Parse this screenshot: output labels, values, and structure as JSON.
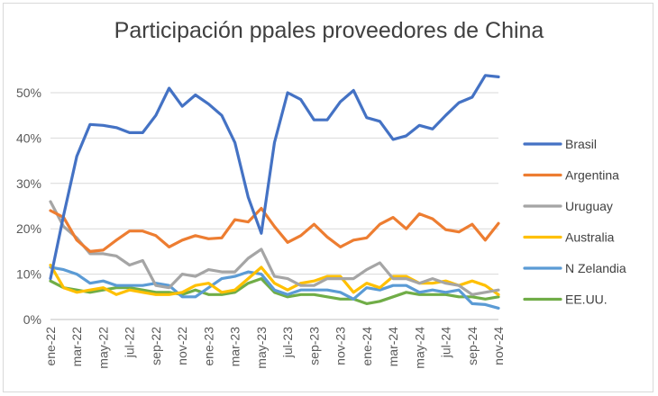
{
  "chart_data": {
    "type": "line",
    "title": "Participación ppales proveedores de China",
    "xlabel": "",
    "ylabel": "",
    "ylim": [
      0,
      0.5
    ],
    "yticks": [
      0,
      0.1,
      0.2,
      0.3,
      0.4,
      0.5
    ],
    "yticklabels": [
      "0%",
      "10%",
      "20%",
      "30%",
      "40%",
      "50%"
    ],
    "xticklabels": [
      "ene-22",
      "mar-22",
      "may-22",
      "jul-22",
      "sep-22",
      "nov-22",
      "ene-23",
      "mar-23",
      "may-23",
      "jul-23",
      "sep-23",
      "nov-23",
      "ene-24",
      "mar-24",
      "may-24",
      "jul-24",
      "sep-24",
      "nov-24"
    ],
    "x": [
      "ene-22",
      "feb-22",
      "mar-22",
      "abr-22",
      "may-22",
      "jun-22",
      "jul-22",
      "ago-22",
      "sep-22",
      "oct-22",
      "nov-22",
      "dic-22",
      "ene-23",
      "feb-23",
      "mar-23",
      "abr-23",
      "may-23",
      "jun-23",
      "jul-23",
      "ago-23",
      "sep-23",
      "oct-23",
      "nov-23",
      "dic-23",
      "ene-24",
      "feb-24",
      "mar-24",
      "abr-24",
      "may-24",
      "jun-24",
      "jul-24",
      "ago-24",
      "sep-24",
      "oct-24",
      "nov-24"
    ],
    "legend_position": "right",
    "grid": true,
    "series": [
      {
        "name": "Brasil",
        "color": "#4472c4",
        "values": [
          0.09,
          0.23,
          0.36,
          0.43,
          0.428,
          0.423,
          0.412,
          0.412,
          0.45,
          0.51,
          0.47,
          0.495,
          0.475,
          0.45,
          0.39,
          0.27,
          0.19,
          0.39,
          0.5,
          0.485,
          0.44,
          0.44,
          0.48,
          0.505,
          0.445,
          0.437,
          0.397,
          0.405,
          0.428,
          0.42,
          0.45,
          0.478,
          0.49,
          0.538,
          0.535
        ]
      },
      {
        "name": "Argentina",
        "color": "#ed7d31",
        "values": [
          0.24,
          0.225,
          0.175,
          0.15,
          0.153,
          0.175,
          0.195,
          0.195,
          0.185,
          0.16,
          0.175,
          0.185,
          0.178,
          0.18,
          0.22,
          0.215,
          0.245,
          0.205,
          0.17,
          0.185,
          0.21,
          0.182,
          0.16,
          0.175,
          0.18,
          0.21,
          0.225,
          0.2,
          0.233,
          0.222,
          0.198,
          0.193,
          0.21,
          0.175,
          0.212
        ]
      },
      {
        "name": "Uruguay",
        "color": "#a5a5a5",
        "values": [
          0.26,
          0.205,
          0.18,
          0.145,
          0.145,
          0.14,
          0.12,
          0.13,
          0.075,
          0.07,
          0.1,
          0.095,
          0.11,
          0.105,
          0.105,
          0.135,
          0.155,
          0.095,
          0.09,
          0.075,
          0.075,
          0.09,
          0.09,
          0.09,
          0.11,
          0.125,
          0.09,
          0.09,
          0.08,
          0.09,
          0.08,
          0.075,
          0.055,
          0.06,
          0.065
        ]
      },
      {
        "name": "Australia",
        "color": "#ffc000",
        "values": [
          0.12,
          0.07,
          0.06,
          0.065,
          0.07,
          0.055,
          0.065,
          0.06,
          0.055,
          0.055,
          0.06,
          0.075,
          0.08,
          0.06,
          0.065,
          0.09,
          0.115,
          0.08,
          0.065,
          0.08,
          0.085,
          0.095,
          0.095,
          0.06,
          0.08,
          0.07,
          0.095,
          0.095,
          0.08,
          0.08,
          0.085,
          0.075,
          0.085,
          0.075,
          0.055
        ]
      },
      {
        "name": "N Zelandia",
        "color": "#5b9bd5",
        "values": [
          0.115,
          0.11,
          0.1,
          0.08,
          0.085,
          0.075,
          0.075,
          0.075,
          0.08,
          0.075,
          0.05,
          0.05,
          0.07,
          0.09,
          0.095,
          0.105,
          0.1,
          0.065,
          0.055,
          0.065,
          0.065,
          0.065,
          0.06,
          0.045,
          0.07,
          0.065,
          0.075,
          0.075,
          0.06,
          0.065,
          0.06,
          0.065,
          0.035,
          0.033,
          0.025
        ]
      },
      {
        "name": "EE.UU.",
        "color": "#70ad47",
        "values": [
          0.085,
          0.07,
          0.065,
          0.06,
          0.065,
          0.07,
          0.07,
          0.065,
          0.06,
          0.06,
          0.055,
          0.065,
          0.055,
          0.055,
          0.06,
          0.08,
          0.09,
          0.06,
          0.05,
          0.055,
          0.055,
          0.05,
          0.045,
          0.045,
          0.035,
          0.04,
          0.05,
          0.06,
          0.055,
          0.055,
          0.055,
          0.05,
          0.05,
          0.045,
          0.05
        ]
      }
    ]
  }
}
